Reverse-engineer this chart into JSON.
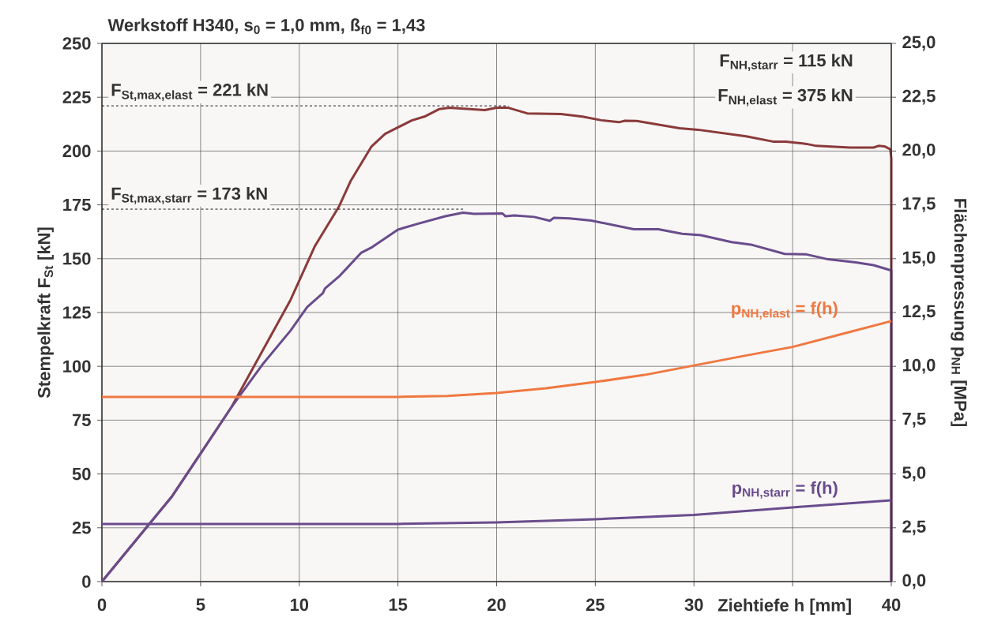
{
  "chart_data": {
    "type": "line",
    "title": "Werkstoff H340, s$_{0}$ = 1,0 mm, ß$_{f0}$ = 1,43",
    "xlabel": "Ziehtiefe h [mm]",
    "ylabel": "Stempelkraft F$_{St}$ [kN]",
    "y2label": "Flächenpressung p$_{NH}$ [MPa]",
    "xlim": [
      0,
      40
    ],
    "ylim": [
      0,
      250
    ],
    "y2lim": [
      0,
      25
    ],
    "xticks": [
      0,
      5,
      10,
      15,
      20,
      25,
      30,
      {
        "value": 35,
        "label": null
      },
      40
    ],
    "yticks": [
      0,
      25,
      50,
      75,
      100,
      125,
      150,
      175,
      200,
      225,
      250
    ],
    "y2ticks": [
      {
        "value": 0,
        "label": "0,0"
      },
      {
        "value": 2.5,
        "label": "2,5"
      },
      {
        "value": 5,
        "label": "5,0"
      },
      {
        "value": 7.5,
        "label": "7,5"
      },
      {
        "value": 10,
        "label": "10,0"
      },
      {
        "value": 12.5,
        "label": "12,5"
      },
      {
        "value": 15,
        "label": "15,0"
      },
      {
        "value": 17.5,
        "label": "17,5"
      },
      {
        "value": 20,
        "label": "20,0"
      },
      {
        "value": 22.5,
        "label": "22,5"
      },
      {
        "value": 25,
        "label": "25,0"
      }
    ],
    "grid": true,
    "series": [
      {
        "color": "#8b3a3a",
        "x": [
          0,
          3.56,
          6.56,
          9.56,
          10.8,
          12,
          12.6,
          13.65,
          14.35,
          15,
          15.7,
          16.4,
          17.1,
          17.6,
          19.4,
          20,
          20.6,
          21.55,
          23.26,
          24.35,
          25.3,
          26.2,
          26.5,
          27.1,
          29.27,
          30.2,
          32.65,
          34,
          34.65,
          35.7,
          36.2,
          37.9,
          39.1,
          39.35,
          39.65,
          39.95,
          40,
          40
        ],
        "values": [
          0,
          39.7,
          81,
          130.9,
          156,
          174,
          186,
          202,
          208,
          211,
          214.2,
          216.2,
          219.5,
          220.1,
          219,
          220.1,
          220.1,
          217.5,
          217.2,
          216,
          214.3,
          213.4,
          214.1,
          214,
          210.6,
          209.9,
          206.8,
          204.4,
          204.4,
          203.3,
          202.4,
          201.6,
          201.6,
          202.4,
          202.2,
          200.8,
          196.6,
          0
        ]
      },
      {
        "color": "#6a4c8c",
        "x": [
          0,
          3.56,
          6.56,
          8.13,
          9.56,
          10.4,
          11.2,
          11.3,
          12,
          12.27,
          13.13,
          13.7,
          15,
          16,
          17.4,
          18.3,
          18.86,
          20.3,
          20.45,
          20.9,
          21.9,
          22.7,
          22.9,
          23.7,
          24.8,
          26.95,
          28.2,
          29.4,
          30.35,
          31.9,
          32.95,
          34.6,
          35.7,
          36.8,
          38.2,
          39.1,
          40,
          40
        ],
        "values": [
          0,
          39.7,
          81,
          100.8,
          116.6,
          127.5,
          134,
          136.1,
          141.6,
          144.2,
          152.7,
          155.4,
          163.5,
          166.2,
          169.7,
          171.4,
          170.8,
          171,
          169.7,
          170.1,
          169.4,
          167.6,
          169,
          168.7,
          167.7,
          163.7,
          163.7,
          161.6,
          160.9,
          157.7,
          156.4,
          152.2,
          152,
          149.7,
          148.3,
          147,
          144.5,
          0
        ]
      },
      {
        "name": "p$_{NH,elast}$ = f(h)",
        "color": "#f07840",
        "axis": "y2",
        "x": [
          0,
          15,
          17.5,
          20,
          22.5,
          25,
          27.5,
          30,
          32.5,
          35,
          37.5,
          40
        ],
        "values": [
          8.58,
          8.58,
          8.62,
          8.76,
          8.98,
          9.27,
          9.6,
          10.04,
          10.48,
          10.9,
          11.5,
          12.1
        ]
      },
      {
        "name": "p$_{NH,starr}$ = f(h)",
        "color": "#6a4c8c",
        "axis": "y2",
        "x": [
          0,
          15,
          20,
          25,
          30,
          35,
          40
        ],
        "values": [
          2.68,
          2.68,
          2.75,
          2.9,
          3.1,
          3.45,
          3.78
        ]
      }
    ],
    "ref_lines": [
      {
        "axis": "y",
        "value": 221,
        "label": "\\text{F}_{\\text{St,max,elast}}\\text{ =  221 kN}",
        "color": "#000000",
        "line_style": "dashed"
      },
      {
        "axis": "y",
        "value": 173,
        "label": "\\text{F}_{\\text{St,max,starr}}\\text{ =  173 kN}",
        "color": "#000000",
        "line_style": "dashed"
      }
    ],
    "annotations": [
      "F$_{NH,starr}$ =  115 kN",
      "F$_{NH,elast}$ =  375 kN"
    ]
  }
}
